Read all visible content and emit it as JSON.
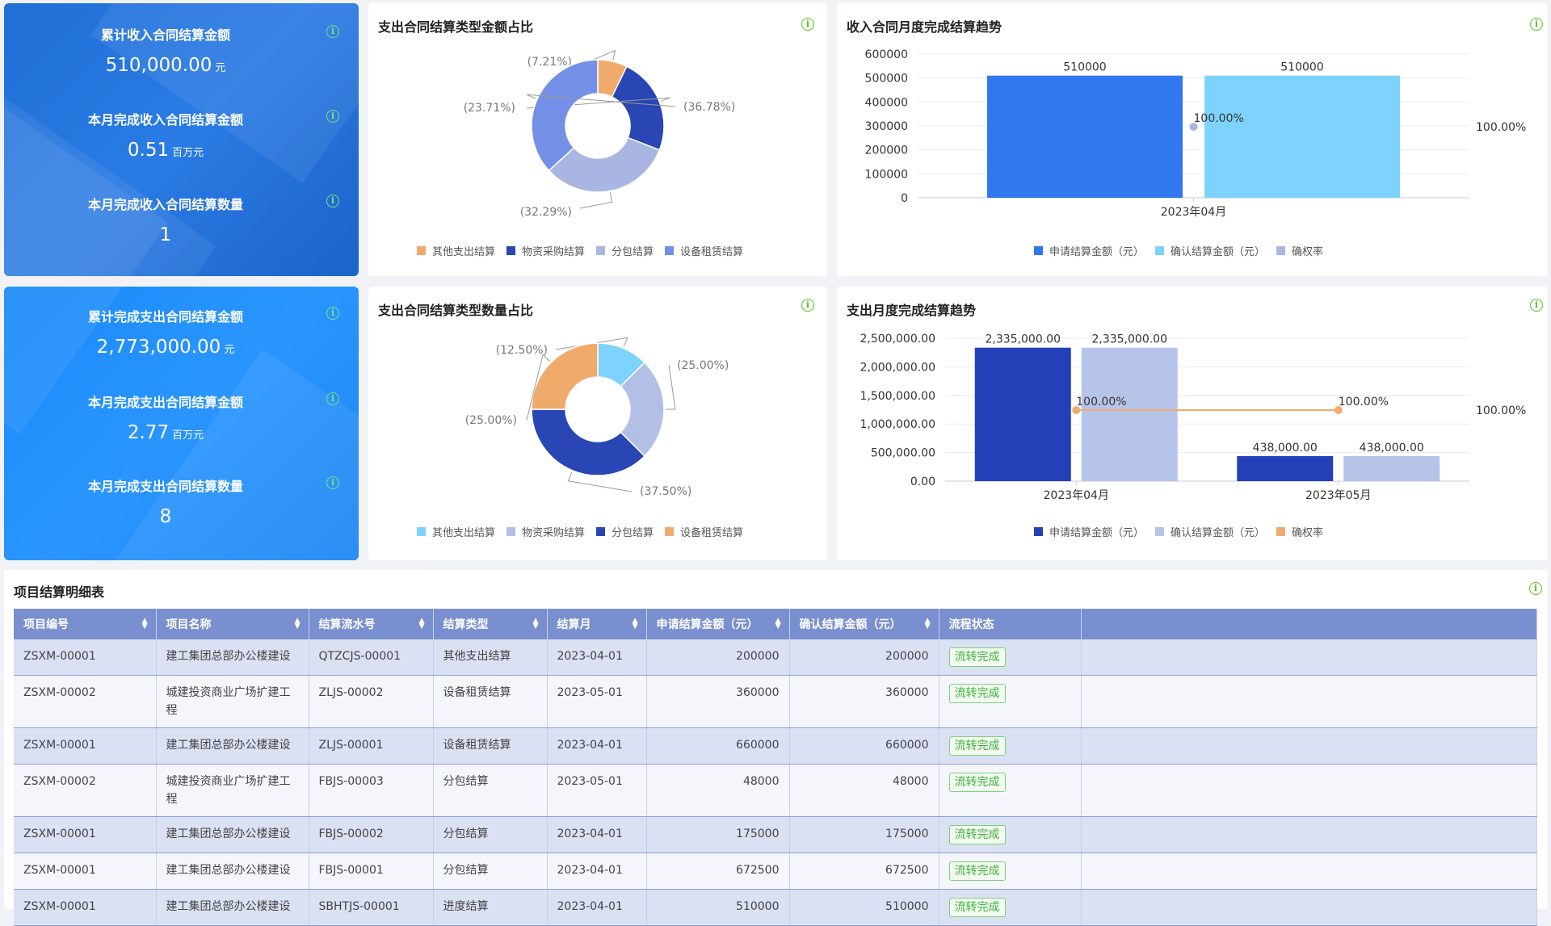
{
  "income_card": {
    "items": [
      {
        "label": "累计收入合同结算金额",
        "value": "510,000.00",
        "unit": "元"
      },
      {
        "label": "本月完成收入合同结算金额",
        "value": "0.51",
        "unit": "百万元"
      },
      {
        "label": "本月完成收入合同结算数量",
        "value": "1",
        "unit": ""
      }
    ]
  },
  "expense_card": {
    "items": [
      {
        "label": "累计完成支出合同结算金额",
        "value": "2,773,000.00",
        "unit": "元"
      },
      {
        "label": "本月完成支出合同结算金额",
        "value": "2.77",
        "unit": "百万元"
      },
      {
        "label": "本月完成支出合同结算数量",
        "value": "8",
        "unit": ""
      }
    ]
  },
  "info_icon_glyph": "i",
  "chart_data": [
    {
      "type": "pie",
      "title": "支出合同结算类型金额占比",
      "slices": [
        {
          "name": "其他支出结算",
          "value": 7.21,
          "label": "(7.21%)",
          "color": "#f0aa6c"
        },
        {
          "name": "物资采购结算",
          "value": 23.71,
          "label": "(23.71%)",
          "color": "#2946b4"
        },
        {
          "name": "分包结算",
          "value": 32.29,
          "label": "(32.29%)",
          "color": "#a9b6e2"
        },
        {
          "name": "设备租赁结算",
          "value": 36.78,
          "label": "(36.78%)",
          "color": "#7390e6"
        }
      ],
      "legend": [
        "其他支出结算",
        "物资采购结算",
        "分包结算",
        "设备租赁结算"
      ]
    },
    {
      "type": "bar",
      "title": "收入合同月度完成结算趋势",
      "categories": [
        "2023年04月"
      ],
      "series": [
        {
          "name": "申请结算金额（元）",
          "values": [
            510000
          ],
          "labels": [
            "510000"
          ],
          "color": "#3178ef"
        },
        {
          "name": "确认结算金额（元）",
          "values": [
            510000
          ],
          "labels": [
            "510000"
          ],
          "color": "#7dd3fc"
        },
        {
          "name": "确权率",
          "values": [
            100
          ],
          "labels": [
            "100.00%"
          ],
          "color": "#a9b6e2"
        }
      ],
      "y_ticks": [
        "0",
        "100000",
        "200000",
        "300000",
        "400000",
        "500000",
        "600000"
      ],
      "ylim": [
        0,
        600000
      ],
      "right_axis_label": "100.00%"
    },
    {
      "type": "pie",
      "title": "支出合同结算类型数量占比",
      "slices": [
        {
          "name": "其他支出结算",
          "value": 12.5,
          "label": "(12.50%)",
          "color": "#7dd3fc"
        },
        {
          "name": "物资采购结算",
          "value": 25.0,
          "label": "(25.00%)",
          "color": "#b3bfe6"
        },
        {
          "name": "分包结算",
          "value": 37.5,
          "label": "(37.50%)",
          "color": "#2946b4"
        },
        {
          "name": "设备租赁结算",
          "value": 25.0,
          "label": "(25.00%)",
          "color": "#f0aa6c"
        }
      ],
      "legend": [
        "其他支出结算",
        "物资采购结算",
        "分包结算",
        "设备租赁结算"
      ]
    },
    {
      "type": "bar",
      "title": "支出月度完成结算趋势",
      "categories": [
        "2023年04月",
        "2023年05月"
      ],
      "series": [
        {
          "name": "申请结算金额（元）",
          "values": [
            2335000,
            438000
          ],
          "labels": [
            "2,335,000.00",
            "438,000.00"
          ],
          "color": "#2340b8"
        },
        {
          "name": "确认结算金额（元）",
          "values": [
            2335000,
            438000
          ],
          "labels": [
            "2,335,000.00",
            "438,000.00"
          ],
          "color": "#b7c4ea"
        },
        {
          "name": "确权率",
          "values": [
            100,
            100
          ],
          "labels": [
            "100.00%",
            "100.00%"
          ],
          "color": "#f0aa6c"
        }
      ],
      "y_ticks": [
        "0.00",
        "500,000.00",
        "1,000,000.00",
        "1,500,000.00",
        "2,000,000.00",
        "2,500,000.00"
      ],
      "ylim": [
        0,
        2500000
      ],
      "right_axis_label": "100.00%"
    }
  ],
  "table": {
    "title": "项目结算明细表",
    "columns": [
      "项目编号",
      "项目名称",
      "结算流水号",
      "结算类型",
      "结算月",
      "申请结算金额（元）",
      "确认结算金额（元）",
      "流程状态"
    ],
    "rows": [
      [
        "ZSXM-00001",
        "建工集团总部办公楼建设",
        "QTZCJS-00001",
        "其他支出结算",
        "2023-04-01",
        "200000",
        "200000",
        "流转完成"
      ],
      [
        "ZSXM-00002",
        "城建投资商业广场扩建工程",
        "ZLJS-00002",
        "设备租赁结算",
        "2023-05-01",
        "360000",
        "360000",
        "流转完成"
      ],
      [
        "ZSXM-00001",
        "建工集团总部办公楼建设",
        "ZLJS-00001",
        "设备租赁结算",
        "2023-04-01",
        "660000",
        "660000",
        "流转完成"
      ],
      [
        "ZSXM-00002",
        "城建投资商业广场扩建工程",
        "FBJS-00003",
        "分包结算",
        "2023-05-01",
        "48000",
        "48000",
        "流转完成"
      ],
      [
        "ZSXM-00001",
        "建工集团总部办公楼建设",
        "FBJS-00002",
        "分包结算",
        "2023-04-01",
        "175000",
        "175000",
        "流转完成"
      ],
      [
        "ZSXM-00001",
        "建工集团总部办公楼建设",
        "FBJS-00001",
        "分包结算",
        "2023-04-01",
        "672500",
        "672500",
        "流转完成"
      ],
      [
        "ZSXM-00001",
        "建工集团总部办公楼建设",
        "SBHTJS-00001",
        "进度结算",
        "2023-04-01",
        "510000",
        "510000",
        "流转完成"
      ]
    ]
  }
}
